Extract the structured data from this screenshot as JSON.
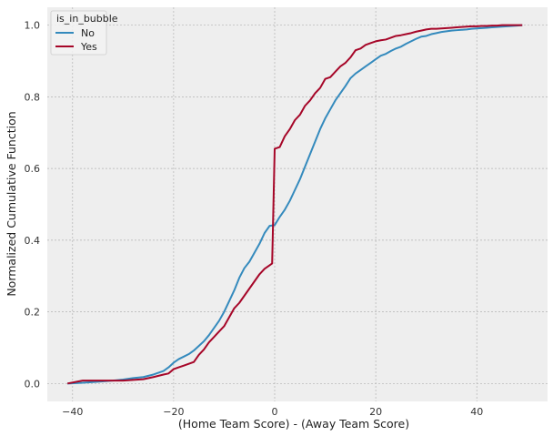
{
  "chart_data": {
    "type": "line",
    "xlabel": "(Home Team Score) - (Away Team Score)",
    "ylabel": "Normalized Cumulative Function",
    "xlim": [
      -45,
      54
    ],
    "ylim": [
      -0.05,
      1.05
    ],
    "xticks": [
      -40,
      -20,
      0,
      20,
      40
    ],
    "xtick_labels": [
      "−40",
      "−20",
      "0",
      "20",
      "40"
    ],
    "yticks": [
      0.0,
      0.2,
      0.4,
      0.6,
      0.8,
      1.0
    ],
    "ytick_labels": [
      "0.0",
      "0.2",
      "0.4",
      "0.6",
      "0.8",
      "1.0"
    ],
    "grid": true,
    "legend": {
      "title": "is_in_bubble",
      "placement": "top-left"
    },
    "series": [
      {
        "name": "No",
        "color": "#348abd",
        "x": [
          -41,
          -38,
          -35,
          -32,
          -30,
          -28,
          -26,
          -24,
          -22,
          -21,
          -20,
          -19,
          -18,
          -17,
          -16,
          -15,
          -14,
          -13,
          -12,
          -11,
          -10,
          -9,
          -8,
          -7,
          -6,
          -5,
          -4,
          -3,
          -2,
          -1,
          0,
          1,
          2,
          3,
          4,
          5,
          6,
          7,
          8,
          9,
          10,
          11,
          12,
          13,
          14,
          15,
          16,
          17,
          18,
          19,
          20,
          21,
          22,
          23,
          24,
          25,
          26,
          27,
          28,
          29,
          30,
          31,
          32,
          33,
          34,
          35,
          36,
          37,
          38,
          39,
          40,
          41,
          42,
          43,
          44,
          45,
          46,
          47,
          48,
          49
        ],
        "y": [
          0.0,
          0.002,
          0.005,
          0.008,
          0.011,
          0.015,
          0.018,
          0.025,
          0.035,
          0.045,
          0.058,
          0.068,
          0.075,
          0.082,
          0.092,
          0.105,
          0.118,
          0.135,
          0.155,
          0.175,
          0.2,
          0.23,
          0.26,
          0.295,
          0.322,
          0.34,
          0.365,
          0.39,
          0.42,
          0.44,
          0.442,
          0.465,
          0.485,
          0.51,
          0.54,
          0.57,
          0.605,
          0.64,
          0.675,
          0.71,
          0.74,
          0.765,
          0.79,
          0.81,
          0.83,
          0.852,
          0.865,
          0.875,
          0.885,
          0.895,
          0.905,
          0.915,
          0.92,
          0.928,
          0.935,
          0.94,
          0.948,
          0.955,
          0.962,
          0.968,
          0.97,
          0.975,
          0.978,
          0.981,
          0.983,
          0.985,
          0.986,
          0.987,
          0.988,
          0.99,
          0.991,
          0.992,
          0.993,
          0.994,
          0.995,
          0.996,
          0.997,
          0.998,
          0.999,
          1.0
        ]
      },
      {
        "name": "Yes",
        "color": "#a60628",
        "x": [
          -41,
          -38,
          -35,
          -32,
          -30,
          -28,
          -26,
          -24,
          -22,
          -21,
          -20,
          -19,
          -18,
          -17,
          -16,
          -15,
          -14,
          -13,
          -12,
          -11,
          -10,
          -9,
          -8,
          -7,
          -6,
          -5,
          -4,
          -3,
          -2,
          -1,
          -0.5,
          0,
          1,
          2,
          3,
          4,
          5,
          6,
          7,
          8,
          9,
          10,
          11,
          12,
          13,
          14,
          15,
          16,
          17,
          18,
          19,
          20,
          21,
          22,
          23,
          24,
          25,
          26,
          27,
          28,
          29,
          30,
          31,
          32,
          33,
          34,
          35,
          36,
          37,
          38,
          39,
          40,
          41,
          42,
          43,
          44,
          45,
          46,
          47,
          48,
          49
        ],
        "y": [
          0.0,
          0.008,
          0.008,
          0.008,
          0.008,
          0.01,
          0.012,
          0.018,
          0.025,
          0.028,
          0.04,
          0.045,
          0.05,
          0.055,
          0.06,
          0.08,
          0.095,
          0.115,
          0.13,
          0.145,
          0.16,
          0.185,
          0.21,
          0.225,
          0.245,
          0.265,
          0.285,
          0.305,
          0.32,
          0.33,
          0.335,
          0.655,
          0.66,
          0.69,
          0.71,
          0.735,
          0.75,
          0.775,
          0.79,
          0.81,
          0.825,
          0.85,
          0.855,
          0.87,
          0.885,
          0.895,
          0.91,
          0.93,
          0.935,
          0.945,
          0.95,
          0.955,
          0.958,
          0.96,
          0.965,
          0.97,
          0.972,
          0.975,
          0.978,
          0.982,
          0.985,
          0.988,
          0.99,
          0.99,
          0.991,
          0.992,
          0.993,
          0.994,
          0.995,
          0.996,
          0.997,
          0.997,
          0.998,
          0.998,
          0.999,
          0.999,
          1.0,
          1.0,
          1.0,
          1.0,
          1.0
        ]
      }
    ]
  }
}
